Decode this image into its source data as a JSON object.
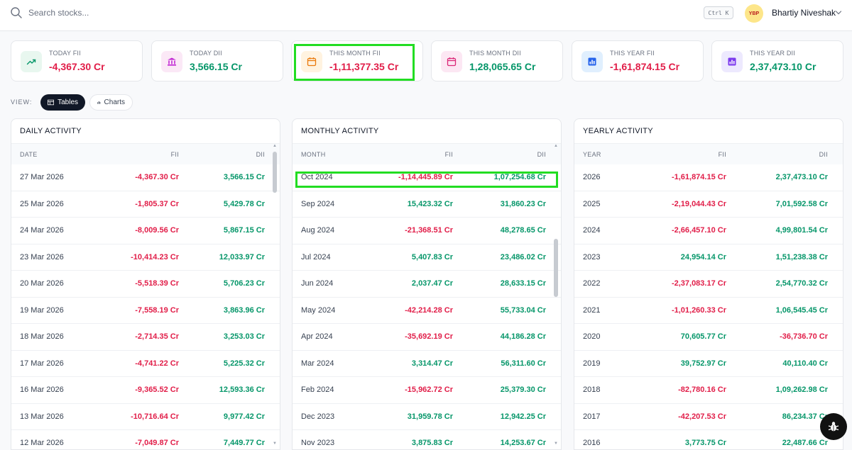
{
  "search": {
    "placeholder": "Search stocks...",
    "shortcut": "Ctrl K"
  },
  "user": {
    "name": "Bhartiy Niveshak",
    "avatar_text": "YBP"
  },
  "stats": [
    {
      "label": "TODAY FII",
      "value": "-4,367.30 Cr",
      "tone": "neg",
      "icon": "trend-up-icon",
      "icon_bg": "#e8f7ef",
      "icon_color": "#059669"
    },
    {
      "label": "TODAY DII",
      "value": "3,566.15 Cr",
      "tone": "pos",
      "icon": "bank-icon",
      "icon_bg": "#fbe8f6",
      "icon_color": "#c026d3"
    },
    {
      "label": "THIS MONTH FII",
      "value": "-1,11,377.35 Cr",
      "tone": "neg",
      "icon": "calendar-icon",
      "icon_bg": "#fff3e0",
      "icon_color": "#ea7a0c"
    },
    {
      "label": "THIS MONTH DII",
      "value": "1,28,065.65 Cr",
      "tone": "pos",
      "icon": "calendar-icon",
      "icon_bg": "#fce7f3",
      "icon_color": "#db2777"
    },
    {
      "label": "THIS YEAR FII",
      "value": "-1,61,874.15 Cr",
      "tone": "neg",
      "icon": "bar-chart-icon",
      "icon_bg": "#e0effe",
      "icon_color": "#2563eb"
    },
    {
      "label": "THIS YEAR DII",
      "value": "2,37,473.10 Cr",
      "tone": "pos",
      "icon": "bar-chart-icon",
      "icon_bg": "#ede9fe",
      "icon_color": "#7c3aed"
    }
  ],
  "view": {
    "label": "VIEW:",
    "tables": "Tables",
    "charts": "Charts",
    "active": "tables"
  },
  "daily": {
    "title": "DAILY ACTIVITY",
    "headers": [
      "DATE",
      "FII",
      "DII"
    ],
    "rows": [
      [
        "27 Mar 2026",
        "-4,367.30 Cr",
        "3,566.15 Cr"
      ],
      [
        "25 Mar 2026",
        "-1,805.37 Cr",
        "5,429.78 Cr"
      ],
      [
        "24 Mar 2026",
        "-8,009.56 Cr",
        "5,867.15 Cr"
      ],
      [
        "23 Mar 2026",
        "-10,414.23 Cr",
        "12,033.97 Cr"
      ],
      [
        "20 Mar 2026",
        "-5,518.39 Cr",
        "5,706.23 Cr"
      ],
      [
        "19 Mar 2026",
        "-7,558.19 Cr",
        "3,863.96 Cr"
      ],
      [
        "18 Mar 2026",
        "-2,714.35 Cr",
        "3,253.03 Cr"
      ],
      [
        "17 Mar 2026",
        "-4,741.22 Cr",
        "5,225.32 Cr"
      ],
      [
        "16 Mar 2026",
        "-9,365.52 Cr",
        "12,593.36 Cr"
      ],
      [
        "13 Mar 2026",
        "-10,716.64 Cr",
        "9,977.42 Cr"
      ],
      [
        "12 Mar 2026",
        "-7,049.87 Cr",
        "7,449.77 Cr"
      ]
    ]
  },
  "monthly": {
    "title": "MONTHLY ACTIVITY",
    "headers": [
      "MONTH",
      "FII",
      "DII"
    ],
    "rows": [
      [
        "Oct 2024",
        "-1,14,445.89 Cr",
        "1,07,254.68 Cr"
      ],
      [
        "Sep 2024",
        "15,423.32 Cr",
        "31,860.23 Cr"
      ],
      [
        "Aug 2024",
        "-21,368.51 Cr",
        "48,278.65 Cr"
      ],
      [
        "Jul 2024",
        "5,407.83 Cr",
        "23,486.02 Cr"
      ],
      [
        "Jun 2024",
        "2,037.47 Cr",
        "28,633.15 Cr"
      ],
      [
        "May 2024",
        "-42,214.28 Cr",
        "55,733.04 Cr"
      ],
      [
        "Apr 2024",
        "-35,692.19 Cr",
        "44,186.28 Cr"
      ],
      [
        "Mar 2024",
        "3,314.47 Cr",
        "56,311.60 Cr"
      ],
      [
        "Feb 2024",
        "-15,962.72 Cr",
        "25,379.30 Cr"
      ],
      [
        "Dec 2023",
        "31,959.78 Cr",
        "12,942.25 Cr"
      ],
      [
        "Nov 2023",
        "3,875.83 Cr",
        "14,253.67 Cr"
      ]
    ]
  },
  "yearly": {
    "title": "YEARLY ACTIVITY",
    "headers": [
      "YEAR",
      "FII",
      "DII"
    ],
    "rows": [
      [
        "2026",
        "-1,61,874.15 Cr",
        "2,37,473.10 Cr"
      ],
      [
        "2025",
        "-2,19,044.43 Cr",
        "7,01,592.58 Cr"
      ],
      [
        "2024",
        "-2,66,457.10 Cr",
        "4,99,801.54 Cr"
      ],
      [
        "2023",
        "24,954.14 Cr",
        "1,51,238.38 Cr"
      ],
      [
        "2022",
        "-2,37,083.17 Cr",
        "2,54,770.32 Cr"
      ],
      [
        "2021",
        "-1,01,260.33 Cr",
        "1,06,545.45 Cr"
      ],
      [
        "2020",
        "70,605.77 Cr",
        "-36,736.70 Cr"
      ],
      [
        "2019",
        "39,752.97 Cr",
        "40,110.40 Cr"
      ],
      [
        "2018",
        "-82,780.16 Cr",
        "1,09,262.98 Cr"
      ],
      [
        "2017",
        "-42,207.53 Cr",
        "86,234.37 Cr"
      ],
      [
        "2016",
        "3,773.75 Cr",
        "22,487.66 Cr"
      ]
    ]
  },
  "colors": {
    "negative": "#e11d48",
    "positive": "#059669",
    "highlight": "#22dd22"
  }
}
